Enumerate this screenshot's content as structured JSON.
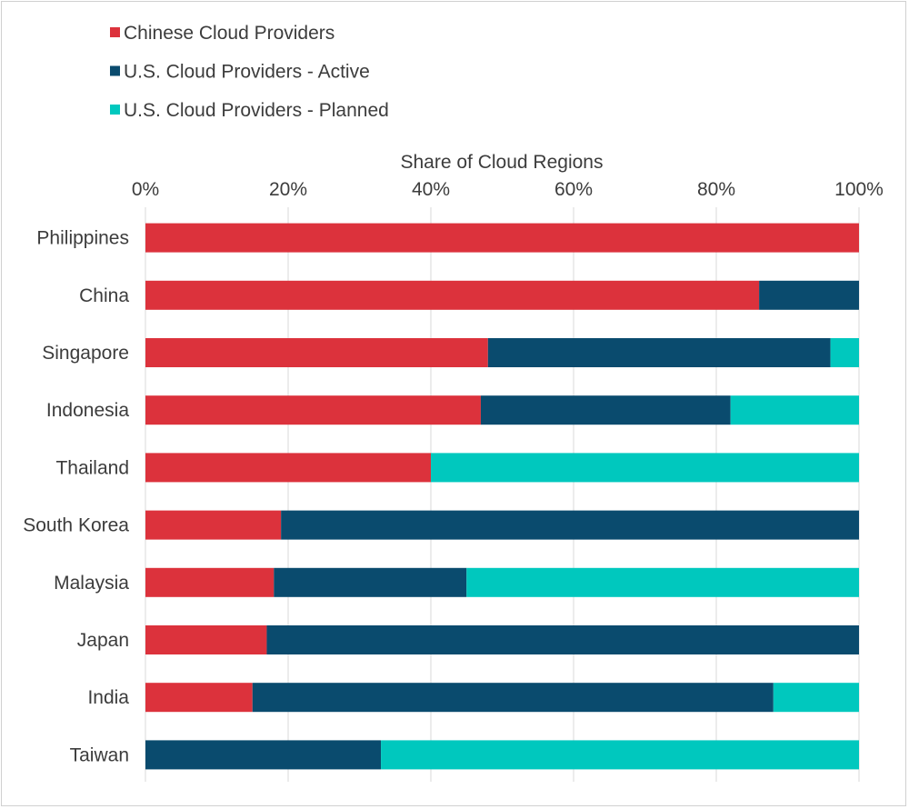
{
  "chart_data": {
    "type": "bar",
    "orientation": "horizontal",
    "stacked": true,
    "xlabel": "Share of Cloud Regions",
    "xlim": [
      0,
      100
    ],
    "xticks": [
      "0%",
      "20%",
      "40%",
      "60%",
      "80%",
      "100%"
    ],
    "legend_position": "top-left",
    "grid": true,
    "categories": [
      "Philippines",
      "China",
      "Singapore",
      "Indonesia",
      "Thailand",
      "South Korea",
      "Malaysia",
      "Japan",
      "India",
      "Taiwan"
    ],
    "series": [
      {
        "name": "Chinese Cloud Providers",
        "color": "#dc323c",
        "values": [
          100,
          86,
          48,
          47,
          40,
          19,
          18,
          17,
          15,
          0
        ]
      },
      {
        "name": "U.S. Cloud Providers - Active",
        "color": "#0a4b6e",
        "values": [
          0,
          14,
          48,
          35,
          0,
          81,
          27,
          83,
          73,
          33
        ]
      },
      {
        "name": "U.S. Cloud Providers - Planned",
        "color": "#00c8be",
        "values": [
          0,
          0,
          4,
          18,
          60,
          0,
          55,
          0,
          12,
          67
        ]
      }
    ]
  }
}
